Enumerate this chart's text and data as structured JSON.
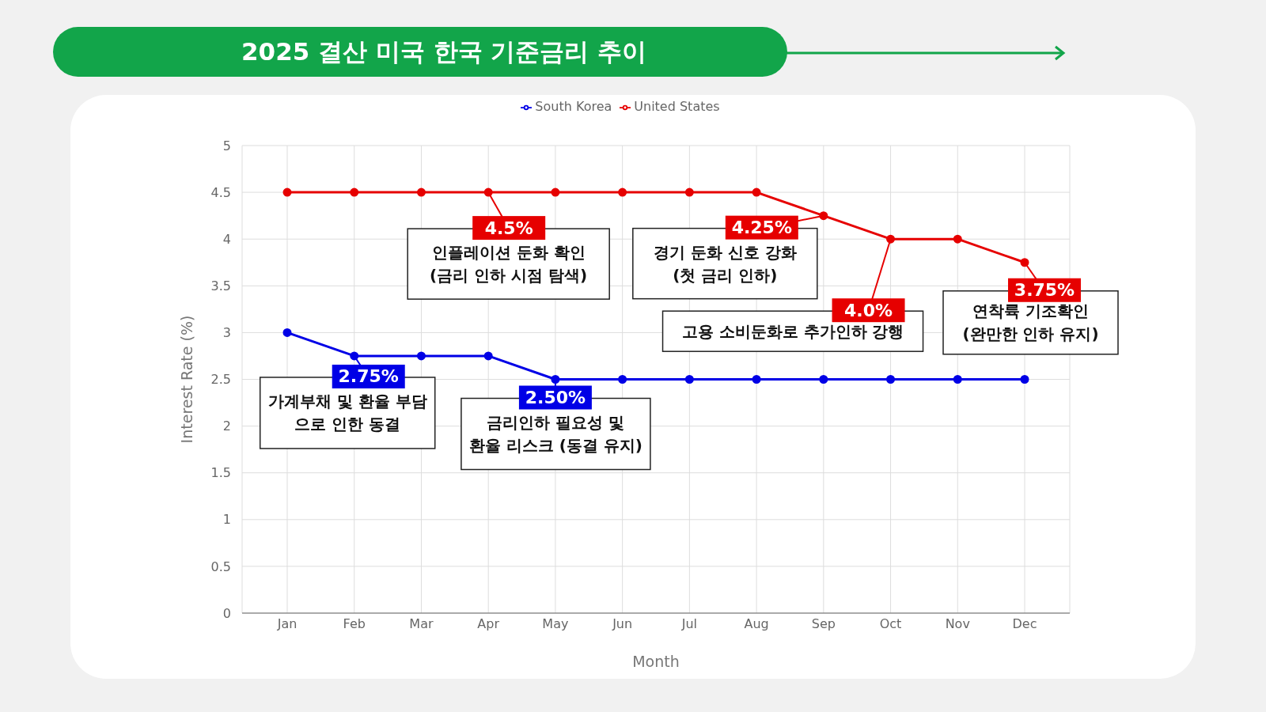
{
  "chart_data": {
    "type": "line",
    "title": "2025 결산 미국 한국 기준금리 추이",
    "xlabel": "Month",
    "ylabel": "Interest Rate (%)",
    "categories": [
      "Jan",
      "Feb",
      "Mar",
      "Apr",
      "May",
      "Jun",
      "Jul",
      "Aug",
      "Sep",
      "Oct",
      "Nov",
      "Dec"
    ],
    "series": [
      {
        "name": "South Korea",
        "color": "#0000e6",
        "values": [
          3,
          2.75,
          2.75,
          2.75,
          2.5,
          2.5,
          2.5,
          2.5,
          2.5,
          2.5,
          2.5,
          2.5
        ]
      },
      {
        "name": "United States",
        "color": "#e60000",
        "values": [
          4.5,
          4.5,
          4.5,
          4.5,
          4.5,
          4.5,
          4.5,
          4.5,
          4.25,
          4,
          4,
          3.75
        ]
      }
    ],
    "ylim": [
      0,
      5
    ],
    "yticks": [
      0,
      0.5,
      1,
      1.5,
      2,
      2.5,
      3,
      3.5,
      4,
      4.5,
      5
    ],
    "grid": true,
    "legend": "top",
    "marker": "circle",
    "line_style": "solid",
    "annotations": [
      {
        "text": "2.75%",
        "x": "Feb",
        "y": 2.75
      },
      {
        "text": "가계부채 및 환율 부담\n으로 인한 동결",
        "x": "Feb",
        "y": 2.75
      },
      {
        "text": "2.50%",
        "x": "May",
        "y": 2.5
      },
      {
        "text": "금리인하 필요성 및\n환율 리스크 (동결 유지)",
        "x": "May",
        "y": 2.5
      },
      {
        "text": "4.5%",
        "x": "Apr",
        "y": 4.5
      },
      {
        "text": "인플레이션 둔화 확인\n(금리 인하 시점 탐색)",
        "x": "Apr",
        "y": 4.5
      },
      {
        "text": "4.25%",
        "x": "Sep",
        "y": 4.25
      },
      {
        "text": "경기 둔화 신호 강화\n(첫 금리 인하)",
        "x": "Sep",
        "y": 4.25
      },
      {
        "text": "4.0%",
        "x": "Oct",
        "y": 4
      },
      {
        "text": "고용 소비둔화로 추가인하 강행",
        "x": "Oct",
        "y": 4
      },
      {
        "text": "3.75%",
        "x": "Dec",
        "y": 3.75
      },
      {
        "text": "연착륙 기조확인\n(완만한 인하 유지)",
        "x": "Dec",
        "y": 3.75
      }
    ]
  }
}
